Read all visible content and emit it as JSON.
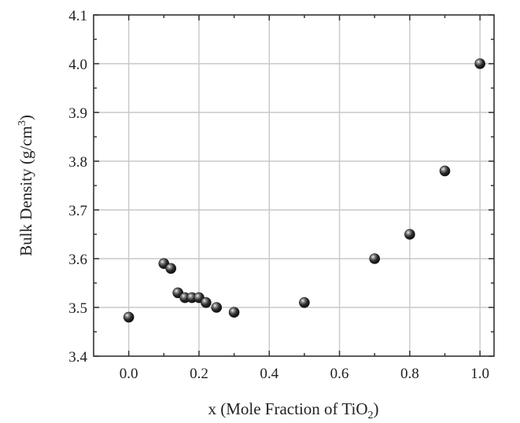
{
  "chart_data": {
    "type": "scatter",
    "title": "",
    "xlabel": {
      "prefix": "x (Mole Fraction of TiO",
      "subscript": "2",
      "suffix": ")"
    },
    "ylabel": {
      "prefix": "Bulk Density (g/cm",
      "superscript": "3",
      "suffix": ")"
    },
    "xlim": [
      -0.1,
      1.04
    ],
    "ylim": [
      3.4,
      4.1
    ],
    "xticks": [
      "0.0",
      "0.2",
      "0.4",
      "0.6",
      "0.8",
      "1.0"
    ],
    "yticks": [
      "3.4",
      "3.5",
      "3.6",
      "3.7",
      "3.8",
      "3.9",
      "4.0",
      "4.1"
    ],
    "grid": true,
    "marker_color": "#1a1a1a",
    "series": [
      {
        "x": [
          0.0,
          0.1,
          0.12,
          0.14,
          0.16,
          0.18,
          0.2,
          0.22,
          0.25,
          0.3,
          0.5,
          0.7,
          0.8,
          0.9,
          1.0
        ],
        "y": [
          3.48,
          3.59,
          3.58,
          3.53,
          3.52,
          3.52,
          3.52,
          3.51,
          3.5,
          3.49,
          3.51,
          3.6,
          3.65,
          3.78,
          4.0
        ]
      }
    ]
  }
}
